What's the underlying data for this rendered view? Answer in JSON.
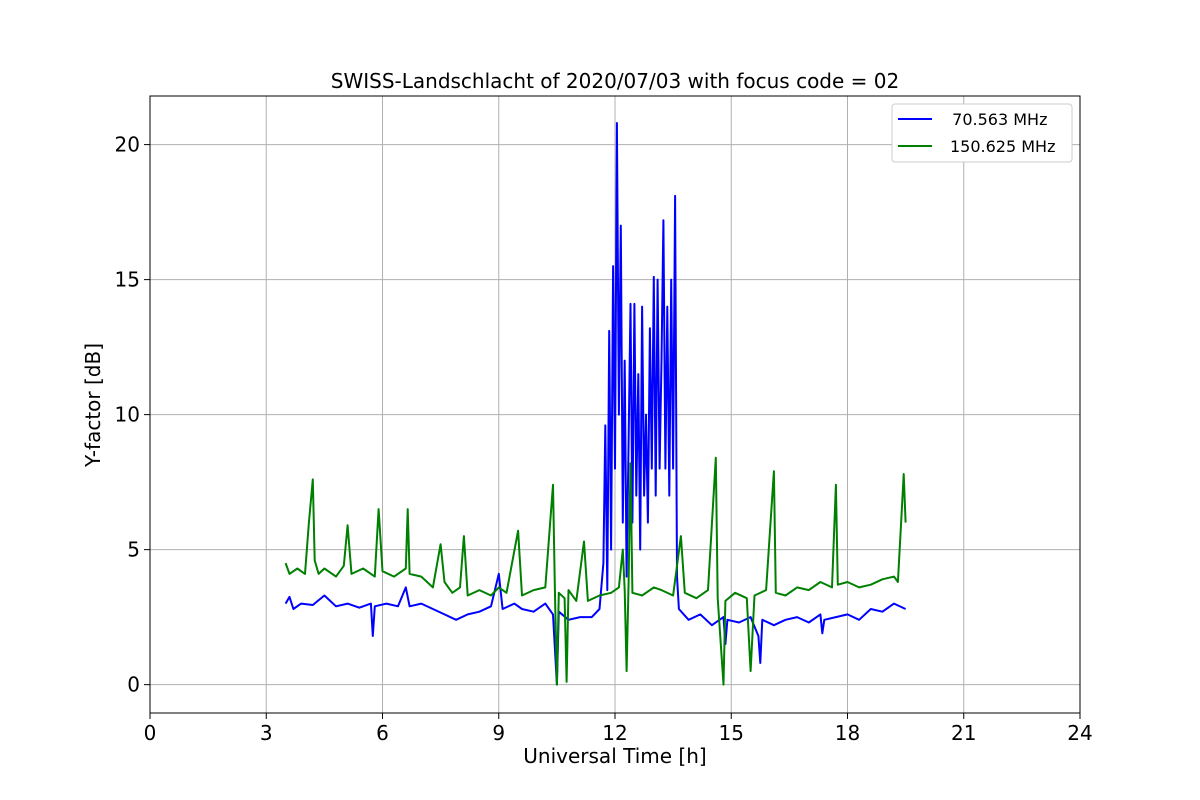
{
  "chart_data": {
    "type": "line",
    "title": "SWISS-Landschlacht of 2020/07/03 with focus code = 02",
    "xlabel": "Universal Time [h]",
    "ylabel": "Y-factor [dB]",
    "xlim": [
      0,
      24
    ],
    "ylim": [
      -1.05,
      21.8
    ],
    "xticks": [
      0,
      3,
      6,
      9,
      12,
      15,
      18,
      21,
      24
    ],
    "yticks": [
      0,
      5,
      10,
      15,
      20
    ],
    "grid": true,
    "legend_position": "top-right",
    "series": [
      {
        "name": "  70.563 MHz",
        "color": "#0000ff",
        "points": [
          [
            3.5,
            3.0
          ],
          [
            3.6,
            3.25
          ],
          [
            3.7,
            2.8
          ],
          [
            3.9,
            3.0
          ],
          [
            4.2,
            2.95
          ],
          [
            4.5,
            3.3
          ],
          [
            4.8,
            2.9
          ],
          [
            5.1,
            3.0
          ],
          [
            5.4,
            2.85
          ],
          [
            5.7,
            3.0
          ],
          [
            5.75,
            1.8
          ],
          [
            5.8,
            2.9
          ],
          [
            6.1,
            3.0
          ],
          [
            6.4,
            2.9
          ],
          [
            6.6,
            3.6
          ],
          [
            6.7,
            2.9
          ],
          [
            7.0,
            3.0
          ],
          [
            7.3,
            2.8
          ],
          [
            7.6,
            2.6
          ],
          [
            7.9,
            2.4
          ],
          [
            8.2,
            2.6
          ],
          [
            8.5,
            2.7
          ],
          [
            8.8,
            2.9
          ],
          [
            9.0,
            4.1
          ],
          [
            9.1,
            2.8
          ],
          [
            9.4,
            3.0
          ],
          [
            9.6,
            2.8
          ],
          [
            9.9,
            2.7
          ],
          [
            10.2,
            3.0
          ],
          [
            10.4,
            2.6
          ],
          [
            10.5,
            0.0
          ],
          [
            10.55,
            2.7
          ],
          [
            10.8,
            2.4
          ],
          [
            11.1,
            2.5
          ],
          [
            11.4,
            2.5
          ],
          [
            11.6,
            2.8
          ],
          [
            11.7,
            4.5
          ],
          [
            11.75,
            9.6
          ],
          [
            11.8,
            3.5
          ],
          [
            11.85,
            13.1
          ],
          [
            11.9,
            5.0
          ],
          [
            11.95,
            15.5
          ],
          [
            12.0,
            8.0
          ],
          [
            12.05,
            20.8
          ],
          [
            12.1,
            10.0
          ],
          [
            12.15,
            17.0
          ],
          [
            12.2,
            6.0
          ],
          [
            12.25,
            12.0
          ],
          [
            12.3,
            4.0
          ],
          [
            12.35,
            9.0
          ],
          [
            12.4,
            14.1
          ],
          [
            12.45,
            6.0
          ],
          [
            12.5,
            14.1
          ],
          [
            12.55,
            7.0
          ],
          [
            12.6,
            11.5
          ],
          [
            12.65,
            5.0
          ],
          [
            12.7,
            14.0
          ],
          [
            12.75,
            7.0
          ],
          [
            12.8,
            10.0
          ],
          [
            12.85,
            6.0
          ],
          [
            12.9,
            13.2
          ],
          [
            12.95,
            8.0
          ],
          [
            13.0,
            15.1
          ],
          [
            13.05,
            7.0
          ],
          [
            13.1,
            15.0
          ],
          [
            13.15,
            8.0
          ],
          [
            13.2,
            12.0
          ],
          [
            13.25,
            17.2
          ],
          [
            13.3,
            8.0
          ],
          [
            13.35,
            14.0
          ],
          [
            13.4,
            7.0
          ],
          [
            13.45,
            15.0
          ],
          [
            13.5,
            8.0
          ],
          [
            13.55,
            18.1
          ],
          [
            13.6,
            4.0
          ],
          [
            13.65,
            2.8
          ],
          [
            13.9,
            2.4
          ],
          [
            14.2,
            2.6
          ],
          [
            14.5,
            2.2
          ],
          [
            14.8,
            2.5
          ],
          [
            14.85,
            1.5
          ],
          [
            14.9,
            2.4
          ],
          [
            15.2,
            2.3
          ],
          [
            15.5,
            2.5
          ],
          [
            15.7,
            1.8
          ],
          [
            15.75,
            0.8
          ],
          [
            15.8,
            2.4
          ],
          [
            16.1,
            2.2
          ],
          [
            16.4,
            2.4
          ],
          [
            16.7,
            2.5
          ],
          [
            17.0,
            2.3
          ],
          [
            17.3,
            2.6
          ],
          [
            17.35,
            1.9
          ],
          [
            17.4,
            2.4
          ],
          [
            17.7,
            2.5
          ],
          [
            18.0,
            2.6
          ],
          [
            18.3,
            2.4
          ],
          [
            18.6,
            2.8
          ],
          [
            18.9,
            2.7
          ],
          [
            19.2,
            3.0
          ],
          [
            19.5,
            2.8
          ]
        ]
      },
      {
        "name": "150.625 MHz",
        "color": "#008000",
        "points": [
          [
            3.5,
            4.5
          ],
          [
            3.6,
            4.1
          ],
          [
            3.8,
            4.3
          ],
          [
            4.0,
            4.1
          ],
          [
            4.1,
            6.0
          ],
          [
            4.2,
            7.6
          ],
          [
            4.25,
            4.6
          ],
          [
            4.35,
            4.1
          ],
          [
            4.5,
            4.3
          ],
          [
            4.8,
            4.0
          ],
          [
            5.0,
            4.4
          ],
          [
            5.1,
            5.9
          ],
          [
            5.2,
            4.1
          ],
          [
            5.5,
            4.3
          ],
          [
            5.8,
            4.0
          ],
          [
            5.9,
            6.5
          ],
          [
            6.0,
            4.2
          ],
          [
            6.3,
            4.0
          ],
          [
            6.6,
            4.3
          ],
          [
            6.65,
            6.5
          ],
          [
            6.7,
            4.1
          ],
          [
            7.0,
            4.0
          ],
          [
            7.3,
            3.6
          ],
          [
            7.5,
            5.2
          ],
          [
            7.6,
            3.8
          ],
          [
            7.8,
            3.4
          ],
          [
            8.0,
            3.6
          ],
          [
            8.1,
            5.5
          ],
          [
            8.2,
            3.3
          ],
          [
            8.5,
            3.5
          ],
          [
            8.8,
            3.3
          ],
          [
            9.0,
            3.6
          ],
          [
            9.2,
            3.4
          ],
          [
            9.5,
            5.7
          ],
          [
            9.6,
            3.3
          ],
          [
            9.9,
            3.5
          ],
          [
            10.2,
            3.6
          ],
          [
            10.4,
            7.4
          ],
          [
            10.45,
            3.5
          ],
          [
            10.5,
            0.0
          ],
          [
            10.55,
            3.4
          ],
          [
            10.7,
            3.2
          ],
          [
            10.75,
            0.1
          ],
          [
            10.8,
            3.5
          ],
          [
            11.0,
            3.1
          ],
          [
            11.2,
            5.3
          ],
          [
            11.3,
            3.1
          ],
          [
            11.6,
            3.3
          ],
          [
            11.9,
            3.4
          ],
          [
            12.1,
            3.6
          ],
          [
            12.2,
            5.0
          ],
          [
            12.25,
            3.5
          ],
          [
            12.3,
            0.5
          ],
          [
            12.35,
            3.8
          ],
          [
            12.4,
            8.2
          ],
          [
            12.45,
            3.4
          ],
          [
            12.7,
            3.3
          ],
          [
            13.0,
            3.6
          ],
          [
            13.2,
            3.5
          ],
          [
            13.5,
            3.3
          ],
          [
            13.7,
            5.5
          ],
          [
            13.8,
            3.4
          ],
          [
            14.1,
            3.2
          ],
          [
            14.4,
            3.5
          ],
          [
            14.6,
            8.4
          ],
          [
            14.65,
            3.2
          ],
          [
            14.8,
            0.0
          ],
          [
            14.85,
            3.1
          ],
          [
            15.1,
            3.4
          ],
          [
            15.4,
            3.2
          ],
          [
            15.5,
            0.5
          ],
          [
            15.6,
            3.3
          ],
          [
            15.9,
            3.5
          ],
          [
            16.1,
            7.9
          ],
          [
            16.15,
            3.4
          ],
          [
            16.4,
            3.3
          ],
          [
            16.7,
            3.6
          ],
          [
            17.0,
            3.5
          ],
          [
            17.3,
            3.8
          ],
          [
            17.6,
            3.6
          ],
          [
            17.7,
            7.4
          ],
          [
            17.75,
            3.7
          ],
          [
            18.0,
            3.8
          ],
          [
            18.3,
            3.6
          ],
          [
            18.6,
            3.7
          ],
          [
            18.9,
            3.9
          ],
          [
            19.2,
            4.0
          ],
          [
            19.3,
            3.8
          ],
          [
            19.4,
            6.4
          ],
          [
            19.45,
            7.8
          ],
          [
            19.5,
            6.0
          ]
        ]
      }
    ]
  }
}
